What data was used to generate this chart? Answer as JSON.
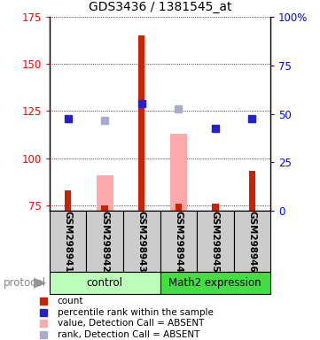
{
  "title": "GDS3436 / 1381545_at",
  "samples": [
    "GSM298941",
    "GSM298942",
    "GSM298943",
    "GSM298944",
    "GSM298945",
    "GSM298946"
  ],
  "ylim_left": [
    72,
    175
  ],
  "ylim_right": [
    0,
    100
  ],
  "yticks_left": [
    75,
    100,
    125,
    150,
    175
  ],
  "yticks_right": [
    0,
    25,
    50,
    75,
    100
  ],
  "yticklabels_right": [
    "0",
    "25",
    "50",
    "75",
    "100%"
  ],
  "red_bars": [
    83,
    75,
    165,
    76,
    76,
    93
  ],
  "pink_bars": [
    null,
    91,
    null,
    113,
    null,
    null
  ],
  "blue_squares": [
    121,
    null,
    129,
    null,
    116,
    121
  ],
  "light_blue_squares": [
    null,
    120,
    null,
    126,
    null,
    null
  ],
  "red_bar_color": "#cc2200",
  "pink_bar_color": "#ffaaaa",
  "blue_sq_color": "#2222cc",
  "light_blue_sq_color": "#aaaacc",
  "label_area_color": "#cccccc",
  "control_color": "#bbffbb",
  "math2_color": "#44dd44",
  "legend_items": [
    {
      "label": "count",
      "color": "#cc2200"
    },
    {
      "label": "percentile rank within the sample",
      "color": "#2222cc"
    },
    {
      "label": "value, Detection Call = ABSENT",
      "color": "#ffaaaa"
    },
    {
      "label": "rank, Detection Call = ABSENT",
      "color": "#aaaacc"
    }
  ]
}
